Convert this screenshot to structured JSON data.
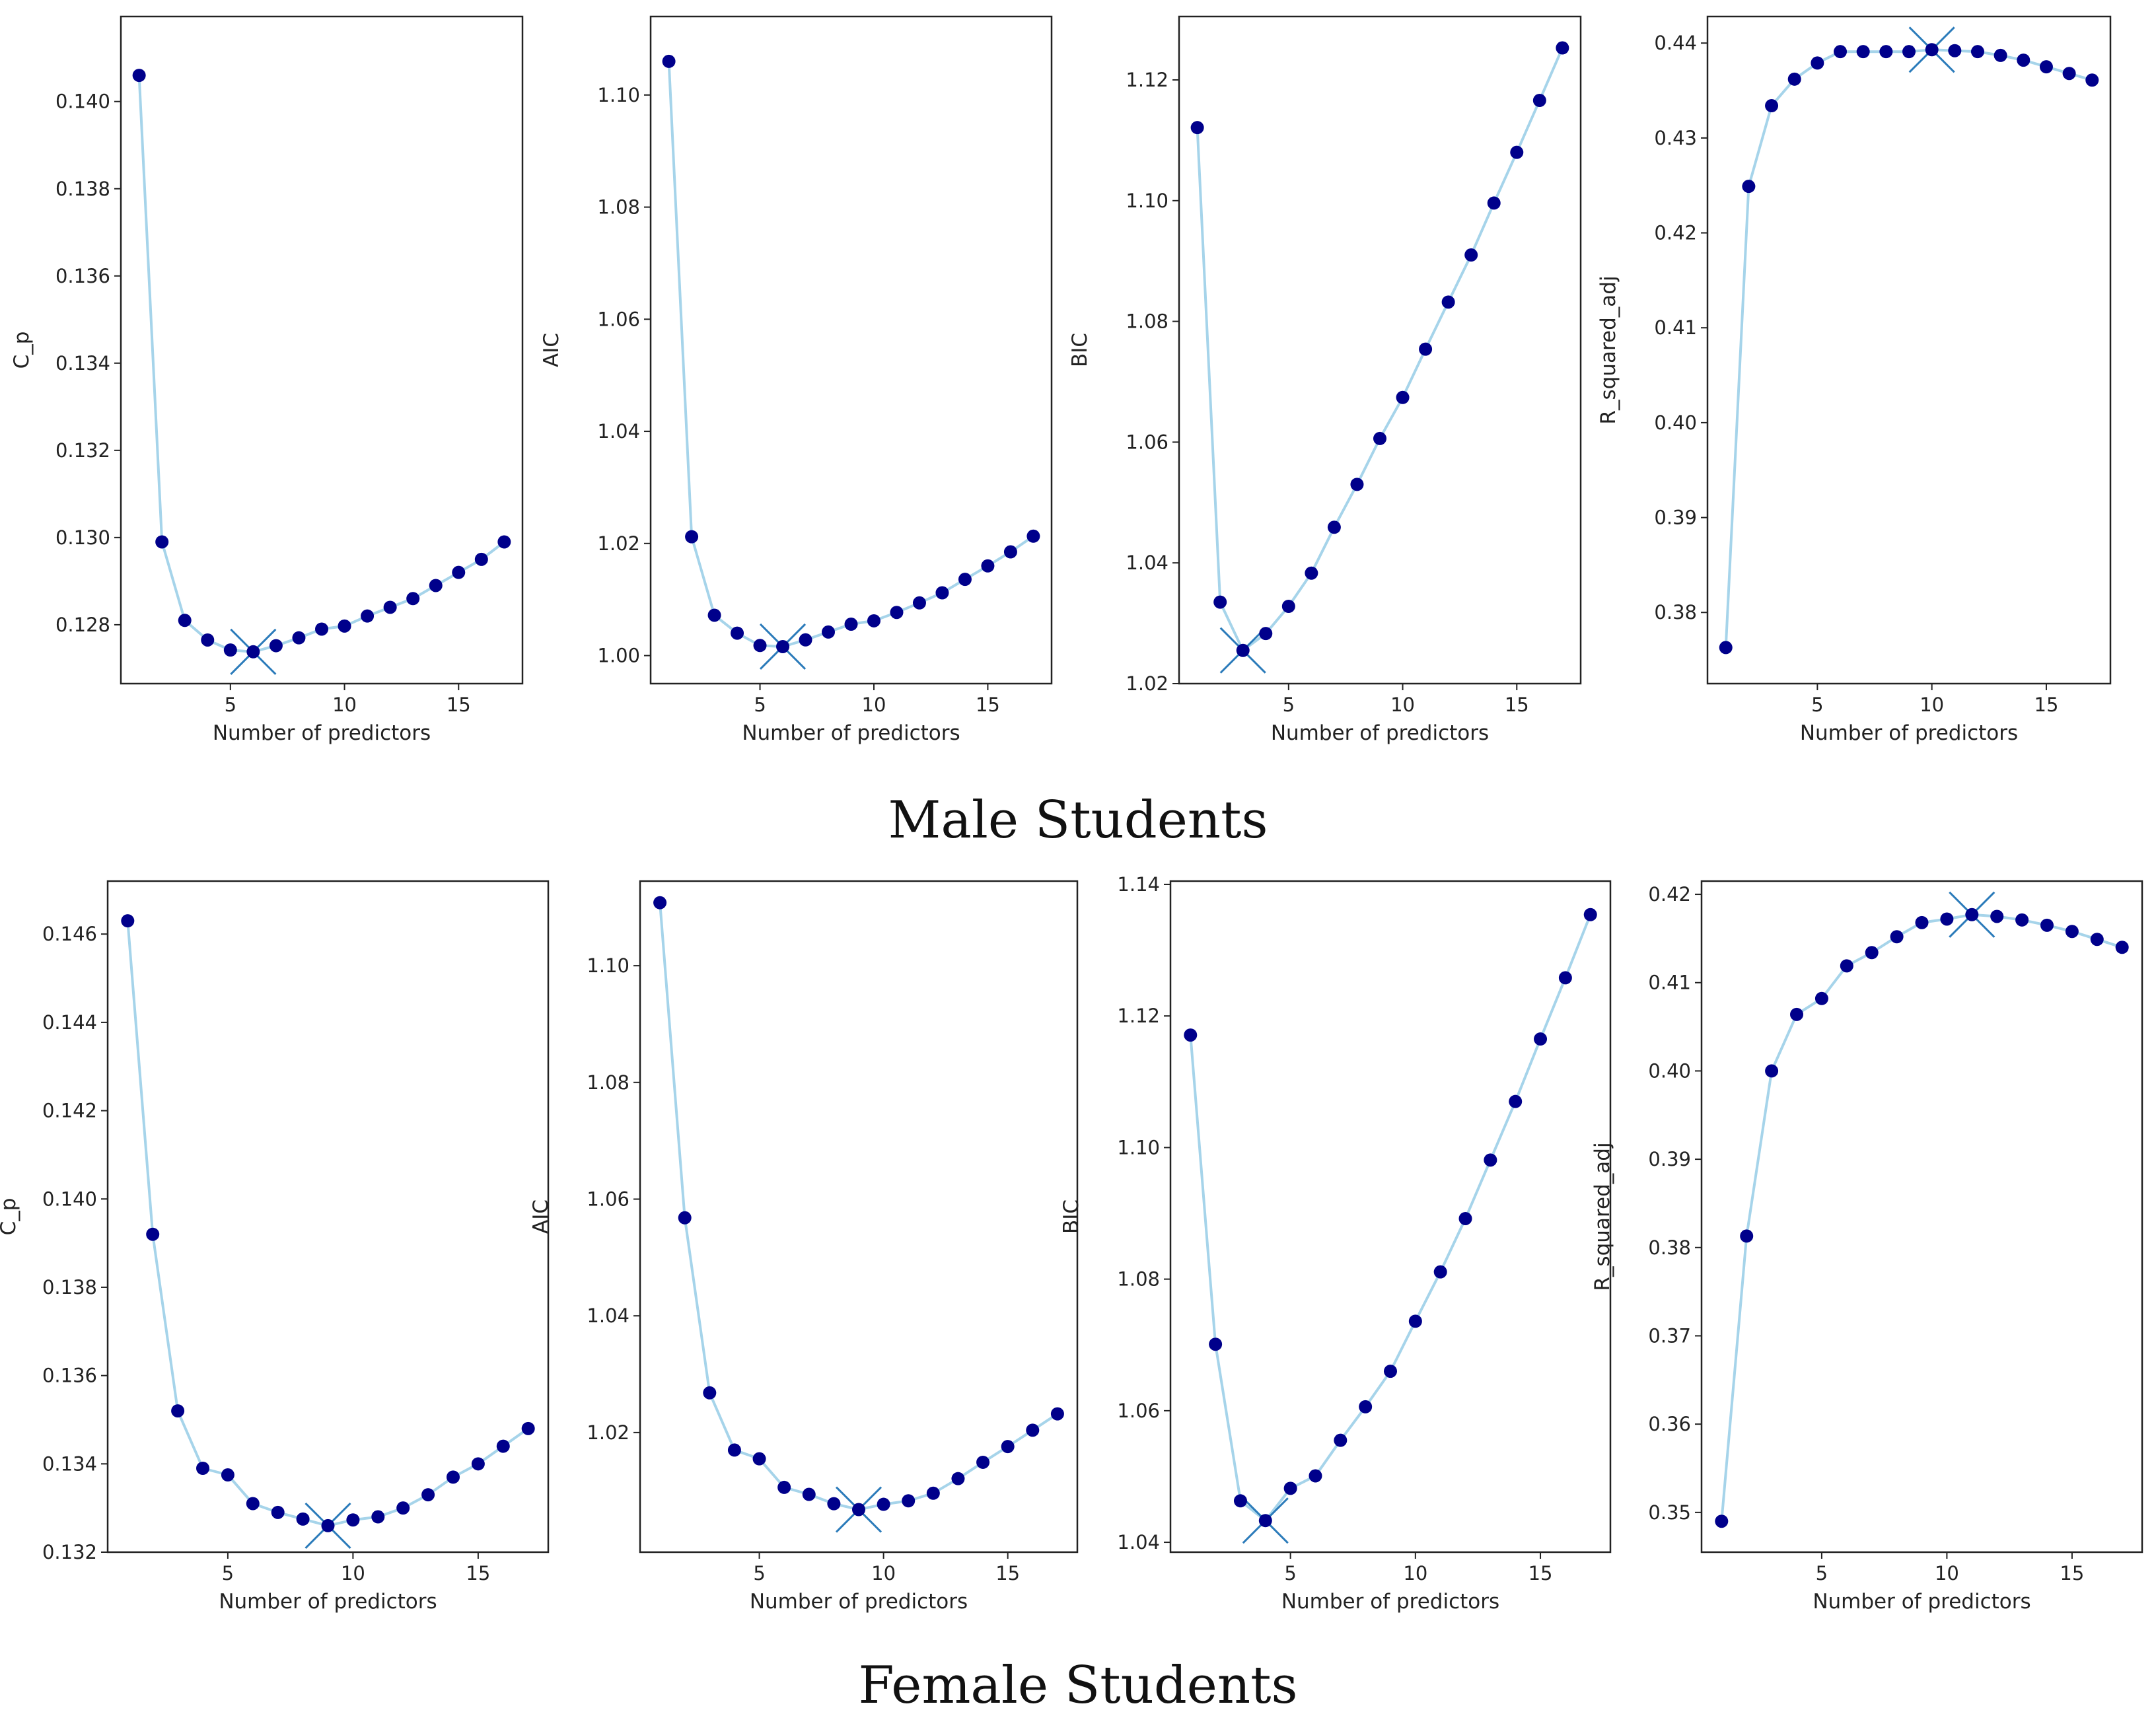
{
  "colors": {
    "line": "#a6d4ea",
    "point": "#00008b",
    "best_marker": "#2b7bba",
    "axes": "#222222"
  },
  "chart_data": [
    {
      "group": "male",
      "type": "line",
      "xlabel": "Number of predictors",
      "ylabel": "C_p",
      "xlim": [
        0.2,
        17.8
      ],
      "ylim": [
        0.12665,
        0.14195
      ],
      "xticks": [
        5,
        10,
        15
      ],
      "yticks": [
        0.128,
        0.13,
        0.132,
        0.134,
        0.136,
        0.138,
        0.14
      ],
      "ytick_labels": [
        "0.128",
        "0.130",
        "0.132",
        "0.134",
        "0.136",
        "0.138",
        "0.140"
      ],
      "x": [
        1,
        2,
        3,
        4,
        5,
        6,
        7,
        8,
        9,
        10,
        11,
        12,
        13,
        14,
        15,
        16,
        17
      ],
      "values": [
        0.1406,
        0.1299,
        0.1281,
        0.12765,
        0.12742,
        0.12738,
        0.12752,
        0.1277,
        0.1279,
        0.12797,
        0.1282,
        0.1284,
        0.1286,
        0.1289,
        0.1292,
        0.1295,
        0.1299
      ],
      "best": {
        "x": 6,
        "y": 0.12738
      }
    },
    {
      "group": "male",
      "type": "line",
      "xlabel": "Number of predictors",
      "ylabel": "AIC",
      "xlim": [
        0.2,
        17.8
      ],
      "ylim": [
        0.995,
        1.114
      ],
      "xticks": [
        5,
        10,
        15
      ],
      "yticks": [
        1.0,
        1.02,
        1.04,
        1.06,
        1.08,
        1.1
      ],
      "ytick_labels": [
        "1.00",
        "1.02",
        "1.04",
        "1.06",
        "1.08",
        "1.10"
      ],
      "x": [
        1,
        2,
        3,
        4,
        5,
        6,
        7,
        8,
        9,
        10,
        11,
        12,
        13,
        14,
        15,
        16,
        17
      ],
      "values": [
        1.106,
        1.0212,
        1.0072,
        1.004,
        1.0018,
        1.0016,
        1.0028,
        1.0042,
        1.0056,
        1.0062,
        1.0077,
        1.0094,
        1.0112,
        1.0136,
        1.016,
        1.0185,
        1.0213
      ],
      "best": {
        "x": 6,
        "y": 1.0016
      }
    },
    {
      "group": "male",
      "type": "line",
      "xlabel": "Number of predictors",
      "ylabel": "BIC",
      "xlim": [
        0.2,
        17.8
      ],
      "ylim": [
        1.02,
        1.1305
      ],
      "xticks": [
        5,
        10,
        15
      ],
      "yticks": [
        1.02,
        1.04,
        1.06,
        1.08,
        1.1,
        1.12
      ],
      "ytick_labels": [
        "1.02",
        "1.04",
        "1.06",
        "1.08",
        "1.10",
        "1.12"
      ],
      "x": [
        1,
        2,
        3,
        4,
        5,
        6,
        7,
        8,
        9,
        10,
        11,
        12,
        13,
        14,
        15,
        16,
        17
      ],
      "values": [
        1.1121,
        1.0335,
        1.0255,
        1.0283,
        1.0328,
        1.0383,
        1.0459,
        1.053,
        1.0606,
        1.0674,
        1.0754,
        1.0832,
        1.091,
        1.0996,
        1.108,
        1.1166,
        1.1253
      ],
      "best": {
        "x": 3,
        "y": 1.0255
      }
    },
    {
      "group": "male",
      "type": "line",
      "xlabel": "Number of predictors",
      "ylabel": "R_squared_adj",
      "xlim": [
        0.2,
        17.8
      ],
      "ylim": [
        0.3725,
        0.4428
      ],
      "xticks": [
        5,
        10,
        15
      ],
      "yticks": [
        0.38,
        0.39,
        0.4,
        0.41,
        0.42,
        0.43,
        0.44
      ],
      "ytick_labels": [
        "0.38",
        "0.39",
        "0.40",
        "0.41",
        "0.42",
        "0.43",
        "0.44"
      ],
      "x": [
        1,
        2,
        3,
        4,
        5,
        6,
        7,
        8,
        9,
        10,
        11,
        12,
        13,
        14,
        15,
        16,
        17
      ],
      "values": [
        0.3763,
        0.4249,
        0.4334,
        0.4362,
        0.4379,
        0.4391,
        0.4391,
        0.4391,
        0.4391,
        0.4393,
        0.4392,
        0.4391,
        0.4387,
        0.4382,
        0.4375,
        0.4368,
        0.4361
      ],
      "best": {
        "x": 10,
        "y": 0.4393
      }
    },
    {
      "group": "female",
      "type": "line",
      "xlabel": "Number of predictors",
      "ylabel": "C_p",
      "xlim": [
        0.2,
        17.8
      ],
      "ylim": [
        0.132,
        0.1472
      ],
      "xticks": [
        5,
        10,
        15
      ],
      "yticks": [
        0.132,
        0.134,
        0.136,
        0.138,
        0.14,
        0.142,
        0.144,
        0.146
      ],
      "ytick_labels": [
        "0.132",
        "0.134",
        "0.136",
        "0.138",
        "0.140",
        "0.142",
        "0.144",
        "0.146"
      ],
      "x": [
        1,
        2,
        3,
        4,
        5,
        6,
        7,
        8,
        9,
        10,
        11,
        12,
        13,
        14,
        15,
        16,
        17
      ],
      "values": [
        0.1463,
        0.1392,
        0.1352,
        0.1339,
        0.13375,
        0.1331,
        0.1329,
        0.13275,
        0.1326,
        0.13273,
        0.1328,
        0.133,
        0.1333,
        0.1337,
        0.134,
        0.1344,
        0.1348
      ],
      "best": {
        "x": 9,
        "y": 0.1326
      }
    },
    {
      "group": "female",
      "type": "line",
      "xlabel": "Number of predictors",
      "ylabel": "AIC",
      "xlim": [
        0.2,
        17.8
      ],
      "ylim": [
        0.9995,
        1.1145
      ],
      "xticks": [
        5,
        10,
        15
      ],
      "yticks": [
        1.02,
        1.04,
        1.06,
        1.08,
        1.1
      ],
      "ytick_labels": [
        "1.02",
        "1.04",
        "1.06",
        "1.08",
        "1.10"
      ],
      "x": [
        1,
        2,
        3,
        4,
        5,
        6,
        7,
        8,
        9,
        10,
        11,
        12,
        13,
        14,
        15,
        16,
        17
      ],
      "values": [
        1.1108,
        1.0568,
        1.0268,
        1.017,
        1.0155,
        1.0106,
        1.0094,
        1.0078,
        1.0068,
        1.0077,
        1.0083,
        1.0096,
        1.0121,
        1.0149,
        1.0176,
        1.0204,
        1.0232
      ],
      "best": {
        "x": 9,
        "y": 1.0068
      }
    },
    {
      "group": "female",
      "type": "line",
      "xlabel": "Number of predictors",
      "ylabel": "BIC",
      "xlim": [
        0.2,
        17.8
      ],
      "ylim": [
        1.0385,
        1.1405
      ],
      "xticks": [
        5,
        10,
        15
      ],
      "yticks": [
        1.04,
        1.06,
        1.08,
        1.1,
        1.12,
        1.14
      ],
      "ytick_labels": [
        "1.04",
        "1.06",
        "1.08",
        "1.10",
        "1.12",
        "1.14"
      ],
      "x": [
        1,
        2,
        3,
        4,
        5,
        6,
        7,
        8,
        9,
        10,
        11,
        12,
        13,
        14,
        15,
        16,
        17
      ],
      "values": [
        1.1171,
        1.0701,
        1.0463,
        1.0433,
        1.0482,
        1.0501,
        1.0555,
        1.0606,
        1.066,
        1.0736,
        1.0811,
        1.0892,
        1.0981,
        1.107,
        1.1165,
        1.1258,
        1.1354
      ],
      "best": {
        "x": 4,
        "y": 1.0433
      }
    },
    {
      "group": "female",
      "type": "line",
      "xlabel": "Number of predictors",
      "ylabel": "R_squared_adj",
      "xlim": [
        0.2,
        17.8
      ],
      "ylim": [
        0.3455,
        0.4215
      ],
      "xticks": [
        5,
        10,
        15
      ],
      "yticks": [
        0.35,
        0.36,
        0.37,
        0.38,
        0.39,
        0.4,
        0.41,
        0.42
      ],
      "ytick_labels": [
        "0.35",
        "0.36",
        "0.37",
        "0.38",
        "0.39",
        "0.40",
        "0.41",
        "0.42"
      ],
      "x": [
        1,
        2,
        3,
        4,
        5,
        6,
        7,
        8,
        9,
        10,
        11,
        12,
        13,
        14,
        15,
        16,
        17
      ],
      "values": [
        0.349,
        0.3813,
        0.4,
        0.4064,
        0.4082,
        0.4119,
        0.4134,
        0.4152,
        0.4168,
        0.4172,
        0.4177,
        0.4175,
        0.4171,
        0.4165,
        0.4158,
        0.4149,
        0.414
      ],
      "best": {
        "x": 11,
        "y": 0.4177
      }
    }
  ],
  "group_titles": {
    "male": "Male Students",
    "female": "Female Students"
  }
}
